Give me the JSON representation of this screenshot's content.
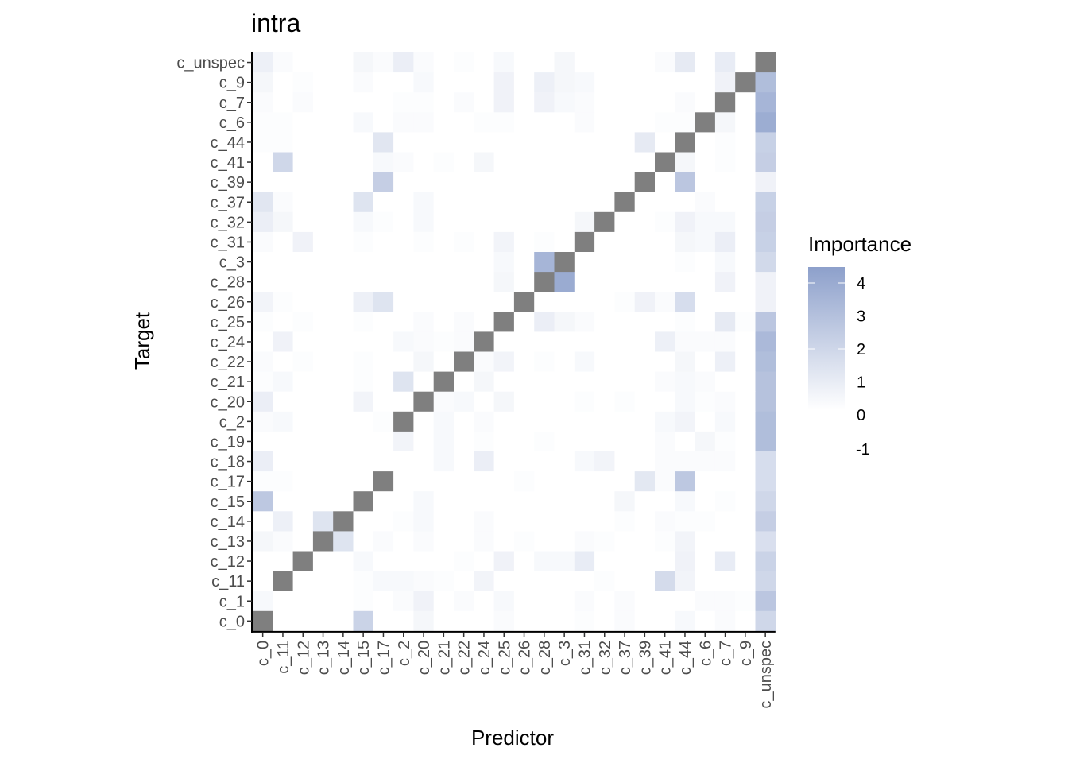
{
  "chart_data": {
    "type": "heatmap",
    "title": "intra",
    "xlabel": "Predictor",
    "ylabel": "Target",
    "x_categories": [
      "c_0",
      "c_11",
      "c_12",
      "c_13",
      "c_14",
      "c_15",
      "c_17",
      "c_2",
      "c_20",
      "c_21",
      "c_22",
      "c_24",
      "c_25",
      "c_26",
      "c_28",
      "c_3",
      "c_31",
      "c_32",
      "c_37",
      "c_39",
      "c_41",
      "c_44",
      "c_6",
      "c_7",
      "c_9",
      "c_unspec"
    ],
    "y_categories_top_to_bottom": [
      "c_unspec",
      "c_9",
      "c_7",
      "c_6",
      "c_44",
      "c_41",
      "c_39",
      "c_37",
      "c_32",
      "c_31",
      "c_3",
      "c_28",
      "c_26",
      "c_25",
      "c_24",
      "c_22",
      "c_21",
      "c_20",
      "c_2",
      "c_19",
      "c_18",
      "c_17",
      "c_15",
      "c_14",
      "c_13",
      "c_12",
      "c_11",
      "c_1",
      "c_0"
    ],
    "self_color": "#7f7f7f",
    "low_color": "#ffffff",
    "high_color": "#8da0cb",
    "value_range": [
      -1,
      4.5
    ],
    "cells": [
      {
        "target": "c_unspec",
        "values": {
          "c_0": 0.7,
          "c_11": 0.2,
          "c_15": 0.4,
          "c_17": 0.2,
          "c_2": 0.8,
          "c_20": 0.2,
          "c_22": 0.1,
          "c_25": 0.3,
          "c_3": 0.4,
          "c_41": 0.2,
          "c_44": 1.0,
          "c_7": 0.9
        }
      },
      {
        "target": "c_9",
        "values": {
          "c_0": 0.4,
          "c_12": 0.1,
          "c_15": 0.2,
          "c_20": 0.3,
          "c_25": 0.6,
          "c_28": 0.7,
          "c_3": 0.4,
          "c_31": 0.3,
          "c_7": 0.6,
          "c_unspec": 3.1
        }
      },
      {
        "target": "c_7",
        "values": {
          "c_0": 0.2,
          "c_12": 0.2,
          "c_2": 0.1,
          "c_20": 0.1,
          "c_22": 0.2,
          "c_25": 0.6,
          "c_28": 0.6,
          "c_3": 0.3,
          "c_31": 0.2,
          "c_44": 0.2,
          "c_unspec": 3.5
        }
      },
      {
        "target": "c_6",
        "values": {
          "c_0": 0.1,
          "c_11": 0.1,
          "c_15": 0.3,
          "c_2": 0.2,
          "c_20": 0.2,
          "c_24": 0.1,
          "c_25": 0.1,
          "c_31": 0.2,
          "c_41": 0.1,
          "c_44": 0.1,
          "c_7": 0.4,
          "c_unspec": 3.9
        }
      },
      {
        "target": "c_44",
        "values": {
          "c_0": 0.1,
          "c_11": 0.1,
          "c_17": 1.2,
          "c_39": 1.0,
          "c_7": 0.1,
          "c_unspec": 2.2
        }
      },
      {
        "target": "c_41",
        "values": {
          "c_11": 1.9,
          "c_17": 0.3,
          "c_2": 0.2,
          "c_21": 0.1,
          "c_24": 0.4,
          "c_44": 0.4,
          "c_7": 0.1,
          "c_unspec": 2.3
        }
      },
      {
        "target": "c_39",
        "values": {
          "c_17": 2.3,
          "c_44": 2.7,
          "c_unspec": 0.6
        }
      },
      {
        "target": "c_37",
        "values": {
          "c_0": 1.2,
          "c_11": 0.2,
          "c_15": 1.3,
          "c_20": 0.3,
          "c_6": 0.2,
          "c_unspec": 2.2
        }
      },
      {
        "target": "c_32",
        "values": {
          "c_0": 0.8,
          "c_11": 0.4,
          "c_15": 0.3,
          "c_17": 0.1,
          "c_20": 0.3,
          "c_31": 0.4,
          "c_41": 0.1,
          "c_44": 0.6,
          "c_6": 0.3,
          "c_7": 0.3,
          "c_unspec": 2.3
        }
      },
      {
        "target": "c_31",
        "values": {
          "c_0": 0.2,
          "c_12": 0.6,
          "c_15": 0.1,
          "c_20": 0.1,
          "c_22": 0.1,
          "c_25": 0.5,
          "c_28": 0.1,
          "c_44": 0.4,
          "c_6": 0.3,
          "c_7": 0.8,
          "c_unspec": 2.2
        }
      },
      {
        "target": "c_3",
        "values": {
          "c_25": 0.3,
          "c_28": 3.5,
          "c_44": 0.1,
          "c_7": 0.3,
          "c_unspec": 1.8
        }
      },
      {
        "target": "c_28",
        "values": {
          "c_25": 0.4,
          "c_3": 4.0,
          "c_7": 0.6,
          "c_unspec": 0.6
        }
      },
      {
        "target": "c_26",
        "values": {
          "c_0": 0.5,
          "c_11": 0.1,
          "c_15": 0.7,
          "c_17": 1.3,
          "c_37": 0.1,
          "c_39": 0.6,
          "c_41": 0.2,
          "c_44": 1.6,
          "c_unspec": 0.6
        }
      },
      {
        "target": "c_25",
        "values": {
          "c_0": 0.1,
          "c_12": 0.1,
          "c_15": 0.1,
          "c_20": 0.2,
          "c_22": 0.2,
          "c_28": 0.8,
          "c_3": 0.4,
          "c_31": 0.2,
          "c_44": 0.1,
          "c_7": 1.0,
          "c_9": 0.1,
          "c_unspec": 2.7
        }
      },
      {
        "target": "c_24",
        "values": {
          "c_11": 0.6,
          "c_2": 0.3,
          "c_20": 0.2,
          "c_21": 0.1,
          "c_22": 0.2,
          "c_41": 0.7,
          "c_44": 0.2,
          "c_6": 0.2,
          "c_7": 0.2,
          "c_unspec": 3.3
        }
      },
      {
        "target": "c_22",
        "values": {
          "c_0": 0.2,
          "c_12": 0.1,
          "c_15": 0.1,
          "c_20": 0.4,
          "c_24": 0.2,
          "c_25": 0.5,
          "c_28": 0.1,
          "c_31": 0.3,
          "c_44": 0.4,
          "c_7": 0.7,
          "c_unspec": 3.1
        }
      },
      {
        "target": "c_21",
        "values": {
          "c_0": 0.1,
          "c_11": 0.3,
          "c_15": 0.1,
          "c_2": 1.3,
          "c_24": 0.4,
          "c_41": 0.2,
          "c_44": 0.3,
          "c_6": 0.2,
          "c_unspec": 2.9
        }
      },
      {
        "target": "c_20",
        "values": {
          "c_0": 0.8,
          "c_15": 0.5,
          "c_21": 0.2,
          "c_22": 0.3,
          "c_25": 0.4,
          "c_31": 0.1,
          "c_37": 0.1,
          "c_44": 0.3,
          "c_6": 0.1,
          "c_7": 0.2,
          "c_unspec": 2.9
        }
      },
      {
        "target": "c_2",
        "values": {
          "c_0": 0.2,
          "c_11": 0.3,
          "c_17": 0.1,
          "c_21": 0.3,
          "c_24": 0.2,
          "c_41": 0.3,
          "c_44": 0.5,
          "c_7": 0.3,
          "c_unspec": 3.1
        }
      },
      {
        "target": "c_19",
        "values": {
          "c_2": 0.5,
          "c_21": 0.3,
          "c_24": 0.1,
          "c_28": 0.1,
          "c_41": 0.2,
          "c_6": 0.4,
          "c_7": 0.1,
          "c_unspec": 3.1
        }
      },
      {
        "target": "c_18",
        "values": {
          "c_0": 0.8,
          "c_21": 0.3,
          "c_24": 0.8,
          "c_31": 0.3,
          "c_32": 0.5,
          "c_41": 0.2,
          "c_44": 0.2,
          "c_6": 0.2,
          "c_7": 0.2,
          "c_unspec": 1.6
        }
      },
      {
        "target": "c_17",
        "values": {
          "c_0": 0.1,
          "c_11": 0.1,
          "c_26": 0.1,
          "c_39": 1.1,
          "c_41": 0.2,
          "c_44": 2.6,
          "c_unspec": 1.6
        }
      },
      {
        "target": "c_15",
        "values": {
          "c_0": 2.6,
          "c_20": 0.3,
          "c_37": 0.4,
          "c_44": 0.3,
          "c_7": 0.1,
          "c_unspec": 1.9
        }
      },
      {
        "target": "c_14",
        "values": {
          "c_11": 0.7,
          "c_13": 1.3,
          "c_2": 0.1,
          "c_20": 0.3,
          "c_24": 0.2,
          "c_37": 0.1,
          "c_41": 0.2,
          "c_44": 0.1,
          "c_6": 0.1,
          "c_unspec": 2.3
        }
      },
      {
        "target": "c_13",
        "values": {
          "c_0": 0.4,
          "c_11": 0.2,
          "c_14": 1.3,
          "c_17": 0.2,
          "c_20": 0.2,
          "c_24": 0.2,
          "c_26": 0.1,
          "c_31": 0.2,
          "c_32": 0.1,
          "c_41": 0.1,
          "c_44": 0.5,
          "c_unspec": 1.5
        }
      },
      {
        "target": "c_12",
        "values": {
          "c_15": 0.3,
          "c_22": 0.1,
          "c_25": 0.6,
          "c_28": 0.3,
          "c_3": 0.3,
          "c_31": 0.9,
          "c_44": 0.6,
          "c_7": 0.9,
          "c_unspec": 2.1
        }
      },
      {
        "target": "c_11",
        "values": {
          "c_15": 0.1,
          "c_17": 0.3,
          "c_2": 0.3,
          "c_20": 0.2,
          "c_21": 0.1,
          "c_24": 0.5,
          "c_32": 0.1,
          "c_41": 1.7,
          "c_44": 0.5,
          "c_unspec": 1.9
        }
      },
      {
        "target": "c_1",
        "values": {
          "c_0": 0.3,
          "c_15": 0.1,
          "c_2": 0.2,
          "c_20": 0.6,
          "c_22": 0.2,
          "c_25": 0.3,
          "c_31": 0.2,
          "c_37": 0.2,
          "c_6": 0.2,
          "c_7": 0.2,
          "c_9": 0.1,
          "c_unspec": 2.7
        }
      },
      {
        "target": "c_0",
        "values": {
          "c_15": 2.1,
          "c_20": 0.4,
          "c_25": 0.2,
          "c_31": 0.1,
          "c_37": 0.2,
          "c_44": 0.3,
          "c_7": 0.2,
          "c_unspec": 1.9
        }
      }
    ],
    "legend": {
      "title": "Importance",
      "ticks": [
        4,
        3,
        2,
        1,
        0,
        -1
      ],
      "tick_labels": [
        "4",
        "3",
        "2",
        "1",
        "0",
        "-1"
      ]
    }
  }
}
